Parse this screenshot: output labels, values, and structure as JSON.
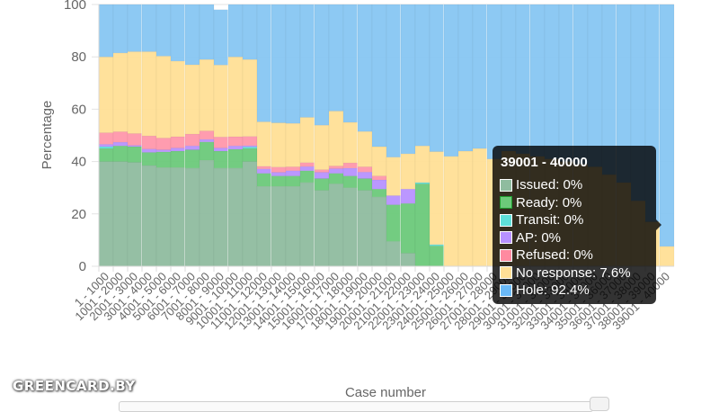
{
  "chart_data": {
    "type": "bar",
    "stacked": true,
    "title": "",
    "xlabel": "Case number",
    "ylabel": "Percentage",
    "ylim": [
      0,
      100
    ],
    "yticks": [
      0,
      20,
      40,
      60,
      80,
      100
    ],
    "grid": true,
    "categories": [
      "1 - 1000",
      "1001 - 2000",
      "2001 - 3000",
      "3001 - 4000",
      "4001 - 5000",
      "5001 - 6000",
      "6001 - 7000",
      "7001 - 8000",
      "8001 - 9000",
      "9001 - 10000",
      "10001 - 11000",
      "11001 - 12000",
      "12001 - 13000",
      "13001 - 14000",
      "14001 - 15000",
      "15001 - 16000",
      "16001 - 17000",
      "17001 - 18000",
      "18001 - 19000",
      "19001 - 20000",
      "20001 - 21000",
      "21001 - 22000",
      "22001 - 23000",
      "23001 - 24000",
      "24001 - 25000",
      "25001 - 26000",
      "26001 - 27000",
      "27001 - 28000",
      "28001 - 29000",
      "29001 - 30000",
      "30001 - 31000",
      "31001 - 32000",
      "32001 - 33000",
      "33001 - 34000",
      "34001 - 35000",
      "35001 - 36000",
      "36001 - 37000",
      "37001 - 38000",
      "38001 - 39000",
      "39001 - 40000"
    ],
    "series": [
      {
        "name": "Issued",
        "color": "#8fbc9f",
        "values": [
          40,
          40,
          39.7,
          38.5,
          37.7,
          37.7,
          37.5,
          40.5,
          37.5,
          37.5,
          40,
          30.5,
          30.5,
          30.5,
          32,
          29,
          31.5,
          30,
          29,
          26.5,
          9.5,
          5,
          0,
          0,
          0,
          0,
          0,
          0,
          0,
          0,
          0,
          0,
          0,
          0,
          0,
          0,
          0,
          0,
          0,
          0
        ]
      },
      {
        "name": "Ready",
        "color": "#6cc97a",
        "values": [
          5,
          6,
          6,
          5,
          6,
          6.3,
          7,
          7,
          6.5,
          7.2,
          5,
          5,
          4,
          4,
          4.5,
          4.5,
          4,
          4.5,
          4.5,
          3,
          14,
          19,
          31.5,
          7.8,
          0,
          0,
          0,
          0,
          0,
          0,
          0,
          0,
          0,
          0,
          0,
          0,
          0,
          0,
          0,
          0
        ]
      },
      {
        "name": "Transit",
        "color": "#5ee0d9",
        "values": [
          0.7,
          0,
          0,
          0,
          0,
          0,
          0,
          0,
          0,
          0,
          0.6,
          0,
          0,
          0,
          0,
          0,
          0,
          0,
          0,
          0,
          0,
          0,
          0.5,
          0.5,
          0,
          0,
          0,
          0,
          0,
          0,
          0,
          0,
          0,
          0,
          0,
          0,
          0,
          0,
          0,
          0
        ]
      },
      {
        "name": "AP",
        "color": "#b791ff",
        "values": [
          0.9,
          1.4,
          0.5,
          1.3,
          0.8,
          1.2,
          1.5,
          1.0,
          1.2,
          1.3,
          0.5,
          1.7,
          1.4,
          2.0,
          1.6,
          2.4,
          1.8,
          3.0,
          2.5,
          3.5,
          3.5,
          5.5,
          0,
          0,
          0,
          0,
          0,
          0,
          0,
          0,
          0,
          0,
          0,
          0,
          0,
          0,
          0,
          0,
          0,
          0
        ]
      },
      {
        "name": "Refused",
        "color": "#ff97ab",
        "values": [
          4.4,
          4.0,
          4.5,
          5.0,
          4.5,
          4.3,
          4.5,
          3.2,
          4.2,
          3.5,
          3.5,
          1.0,
          2.0,
          1.5,
          1.5,
          1.0,
          1.0,
          2.0,
          2.0,
          1.5,
          0,
          0,
          0,
          0,
          0,
          0,
          0,
          0,
          0,
          0,
          0,
          0,
          0,
          0,
          0,
          0,
          0,
          0,
          0,
          0
        ]
      },
      {
        "name": "No response",
        "color": "#ffdf96",
        "values": [
          29,
          30.1,
          31.3,
          32.2,
          31.3,
          28.9,
          26.5,
          27.3,
          27.5,
          30.5,
          29.4,
          17,
          16.9,
          16.6,
          17.3,
          17,
          21,
          15.5,
          13.5,
          11.2,
          14.7,
          13.5,
          14,
          35.5,
          42,
          44,
          45,
          41,
          44,
          43,
          42,
          41,
          40,
          39,
          38,
          35,
          32,
          25,
          17,
          7.6
        ]
      },
      {
        "name": "Hole",
        "color": "#87c6f2",
        "values": [
          20,
          18.5,
          18,
          18,
          19.7,
          21.6,
          23,
          21,
          21.1,
          20,
          21,
          44.8,
          45.2,
          45.4,
          43.1,
          46.1,
          40.7,
          45,
          48.5,
          54.3,
          58.3,
          57,
          54,
          56.2,
          58,
          56,
          55,
          59,
          56,
          57,
          58,
          59,
          60,
          61,
          62,
          65,
          68,
          75,
          83,
          92.4
        ]
      }
    ],
    "tooltip": {
      "title": "39001 - 40000",
      "rows": [
        {
          "label": "Issued: 0%",
          "color": "#8fbc9f",
          "border": "#ffffff"
        },
        {
          "label": "Ready: 0%",
          "color": "#6cc97a",
          "border": "#1f9a2e"
        },
        {
          "label": "Transit: 0%",
          "color": "#5ee0d9",
          "border": "#ffffff"
        },
        {
          "label": "AP: 0%",
          "color": "#b791ff",
          "border": "#ffffff"
        },
        {
          "label": "Refused: 0%",
          "color": "#ff8aa0",
          "border": "#ffffff"
        },
        {
          "label": "No response: 7.6%",
          "color": "#ffdf96",
          "border": "#ffffff"
        },
        {
          "label": "Hole: 92.4%",
          "color": "#6ab9f7",
          "border": "#ffffff"
        }
      ]
    }
  },
  "watermark": "GREENCARD.BY"
}
